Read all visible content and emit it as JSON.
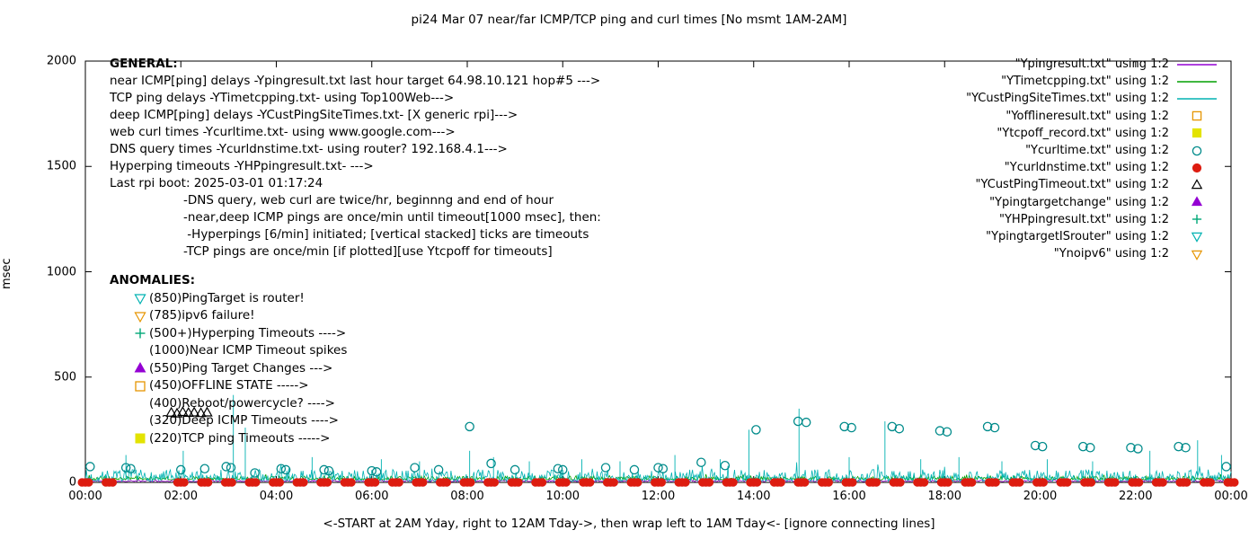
{
  "title": "pi24 Mar 07  near/far ICMP/TCP ping and curl times [No msmt 1AM-2AM]",
  "xlabel": "<-START at 2AM Yday, right to 12AM Tday->, then wrap left to 1AM Tday<- [ignore connecting lines]",
  "ylabel": "msec",
  "legend": [
    {
      "label": "\"Ypingresult.txt\" using 1:2",
      "key": "line",
      "color": "#9400d3"
    },
    {
      "label": "\"YTimetcpping.txt\" using 1:2",
      "key": "line",
      "color": "#00a000"
    },
    {
      "label": "\"YCustPingSiteTimes.txt\" using 1:2",
      "key": "line",
      "color": "#00b2b2"
    },
    {
      "label": "\"Yofflineresult.txt\" using 1:2",
      "key": "square-open",
      "color": "#e69500"
    },
    {
      "label": "\"Ytcpoff_record.txt\" using 1:2",
      "key": "square-filled",
      "color": "#e3e300"
    },
    {
      "label": "\"Ycurltime.txt\" using 1:2",
      "key": "circle-open",
      "color": "#008b8b"
    },
    {
      "label": "\"Ycurldnstime.txt\" using 1:2",
      "key": "circle-filled",
      "color": "#dd1c10"
    },
    {
      "label": "\"YCustPingTimeout.txt\" using 1:2",
      "key": "triangle-up-open",
      "color": "#000000"
    },
    {
      "label": "\"Ypingtargetchange\" using 1:2",
      "key": "triangle-up-filled",
      "color": "#9400d3"
    },
    {
      "label": "\"YHPpingresult.txt\" using 1:2",
      "key": "plus",
      "color": "#00a878"
    },
    {
      "label": "\"YpingtargetISrouter\" using 1:2",
      "key": "triangle-down-open",
      "color": "#00b2b2"
    },
    {
      "label": "\"Ynoipv6\" using 1:2",
      "key": "triangle-down-open",
      "color": "#e69500"
    }
  ],
  "general": {
    "heading": "GENERAL:",
    "lines": [
      "near ICMP[ping] delays -Ypingresult.txt last hour target 64.98.10.121 hop#5 --->",
      "TCP ping delays -YTimetcpping.txt- using Top100Web--->",
      "deep ICMP[ping] delays -YCustPingSiteTimes.txt- [X generic rpi]--->",
      "web curl times -Ycurltime.txt- using www.google.com--->",
      "DNS query times -Ycurldnstime.txt- using router? 192.168.4.1--->",
      "Hyperping timeouts -YHPpingresult.txt- --->",
      "Last rpi boot: 2025-03-01 01:17:24"
    ],
    "notes": [
      "-DNS query, web curl are twice/hr, beginnng and end of hour",
      "-near,deep ICMP pings are once/min until timeout[1000 msec], then:",
      " -Hyperpings [6/min] initiated; [vertical stacked] ticks are timeouts",
      "-TCP pings are once/min [if plotted][use Ytcpoff for timeouts]"
    ]
  },
  "anomalies": {
    "heading": "ANOMALIES:",
    "items": [
      {
        "marker": "triangle-down-open",
        "color": "#00b2b2",
        "text": "(850)PingTarget is router!"
      },
      {
        "marker": "triangle-down-open",
        "color": "#e69500",
        "text": "(785)ipv6 failure!"
      },
      {
        "marker": "plus",
        "color": "#00a878",
        "text": "(500+)Hyperping Timeouts ---->"
      },
      {
        "marker": "",
        "color": "",
        "text": "(1000)Near ICMP Timeout spikes"
      },
      {
        "marker": "triangle-up-filled",
        "color": "#9400d3",
        "text": "(550)Ping Target Changes --->"
      },
      {
        "marker": "square-open",
        "color": "#e69500",
        "text": "(450)OFFLINE STATE ----->"
      },
      {
        "marker": "",
        "color": "",
        "text": "(400)Reboot/powercycle? ---->"
      },
      {
        "marker": "",
        "color": "",
        "text": "(320)Deep ICMP Timeouts ---->"
      },
      {
        "marker": "square-filled",
        "color": "#e3e300",
        "text": "(220)TCP ping Timeouts ----->"
      }
    ]
  },
  "chart_data": {
    "type": "line",
    "title": "pi24 Mar 07  near/far ICMP/TCP ping and curl times [No msmt 1AM-2AM]",
    "xlabel": "<-START at 2AM Yday, right to 12AM Tday->, then wrap left to 1AM Tday<- [ignore connecting lines]",
    "ylabel": "msec",
    "xlim": [
      0,
      24
    ],
    "ylim": [
      0,
      2000
    ],
    "grid": false,
    "legend_position": "top-right",
    "x_tick_labels": [
      "00:00",
      "02:00",
      "04:00",
      "06:00",
      "08:00",
      "10:00",
      "12:00",
      "14:00",
      "16:00",
      "18:00",
      "20:00",
      "22:00",
      "00:00"
    ],
    "y_tick_values": [
      0,
      500,
      1000,
      1500,
      2000
    ],
    "y_tick_labels": [
      "0",
      "500",
      "1000",
      "1500",
      "2000"
    ],
    "series": [
      {
        "name": "near-icmp-ping-delays",
        "style": "noisy-line",
        "color": "#9400d3",
        "base": 4,
        "amp": 8,
        "seed": 11,
        "step": 0.02
      },
      {
        "name": "tcp-ping-delays",
        "style": "noisy-line",
        "color": "#00a000",
        "base": 12,
        "amp": 18,
        "seed": 23,
        "step": 0.02
      },
      {
        "name": "deep-icmp-ping-delays",
        "style": "noisy-line",
        "color": "#00b2b2",
        "base": 6,
        "amp": 55,
        "seed": 7,
        "step": 0.02,
        "spikes": [
          [
            0.85,
            130
          ],
          [
            2.05,
            150
          ],
          [
            3.1,
            415
          ],
          [
            3.35,
            260
          ],
          [
            4.75,
            120
          ],
          [
            6.2,
            110
          ],
          [
            7.0,
            100
          ],
          [
            8.05,
            150
          ],
          [
            8.55,
            120
          ],
          [
            9.3,
            100
          ],
          [
            10.4,
            110
          ],
          [
            11.2,
            100
          ],
          [
            12.35,
            130
          ],
          [
            13.3,
            110
          ],
          [
            13.9,
            250
          ],
          [
            14.95,
            350
          ],
          [
            16.0,
            120
          ],
          [
            16.75,
            290
          ],
          [
            17.5,
            110
          ],
          [
            18.3,
            120
          ],
          [
            19.2,
            100
          ],
          [
            20.15,
            110
          ],
          [
            21.1,
            100
          ],
          [
            22.3,
            150
          ],
          [
            23.3,
            200
          ],
          [
            23.8,
            130
          ]
        ]
      },
      {
        "name": "web-curl-times",
        "style": "points",
        "marker": "circle-open",
        "color": "#008b8b",
        "points": [
          [
            0.1,
            75
          ],
          [
            0.85,
            70
          ],
          [
            0.95,
            65
          ],
          [
            2.0,
            60
          ],
          [
            2.5,
            65
          ],
          [
            2.95,
            75
          ],
          [
            3.05,
            70
          ],
          [
            3.55,
            45
          ],
          [
            4.1,
            65
          ],
          [
            4.2,
            60
          ],
          [
            5.0,
            60
          ],
          [
            5.1,
            55
          ],
          [
            6.0,
            55
          ],
          [
            6.1,
            50
          ],
          [
            6.9,
            70
          ],
          [
            7.4,
            60
          ],
          [
            8.05,
            265
          ],
          [
            8.5,
            90
          ],
          [
            9.0,
            60
          ],
          [
            9.9,
            65
          ],
          [
            10.0,
            60
          ],
          [
            10.9,
            70
          ],
          [
            11.5,
            60
          ],
          [
            12.0,
            70
          ],
          [
            12.1,
            65
          ],
          [
            12.9,
            95
          ],
          [
            13.4,
            80
          ],
          [
            14.05,
            250
          ],
          [
            14.93,
            290
          ],
          [
            15.1,
            285
          ],
          [
            15.9,
            265
          ],
          [
            16.05,
            260
          ],
          [
            16.9,
            265
          ],
          [
            17.05,
            255
          ],
          [
            17.9,
            245
          ],
          [
            18.05,
            240
          ],
          [
            18.9,
            265
          ],
          [
            19.05,
            260
          ],
          [
            19.9,
            175
          ],
          [
            20.05,
            170
          ],
          [
            20.9,
            170
          ],
          [
            21.05,
            165
          ],
          [
            21.9,
            165
          ],
          [
            22.05,
            160
          ],
          [
            22.9,
            170
          ],
          [
            23.05,
            165
          ],
          [
            23.9,
            75
          ]
        ]
      },
      {
        "name": "dns-query-times",
        "style": "points-pattern",
        "marker": "circle-filled",
        "color": "#dd1c10",
        "x_start": 0,
        "x_end": 24,
        "x_step": 0.5,
        "skip_x": [
          1,
          1.5
        ],
        "y": 0,
        "cluster_dx": [
          -0.07,
          0,
          0.07
        ]
      },
      {
        "name": "deep-icmp-timeouts",
        "style": "points",
        "marker": "triangle-up-open",
        "color": "#000000",
        "points": [
          [
            1.8,
            330
          ],
          [
            1.92,
            326
          ],
          [
            2.04,
            333
          ],
          [
            2.16,
            329
          ],
          [
            2.28,
            331
          ],
          [
            2.42,
            328
          ],
          [
            2.55,
            331
          ]
        ]
      }
    ]
  }
}
